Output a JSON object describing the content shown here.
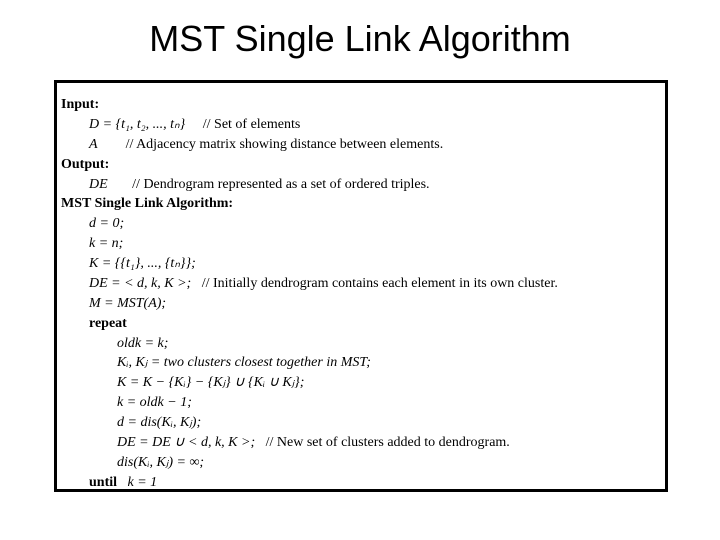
{
  "title": "MST Single Link Algorithm",
  "box": {
    "border_color": "#000000",
    "background": "#ffffff"
  },
  "lines": {
    "l0": "Input:",
    "l1a": "D = {t₁, t₂, ..., tₙ}",
    "l1b": "// Set of elements",
    "l2a": "A",
    "l2b": "// Adjacency matrix showing distance between elements.",
    "l3": "Output:",
    "l4a": "DE",
    "l4b": "// Dendrogram represented as a set of ordered triples.",
    "l5": "MST Single Link Algorithm:",
    "l6": "d = 0;",
    "l7": "k = n;",
    "l8": "K = {{t₁}, ..., {tₙ}};",
    "l9a": "DE = < d, k, K >;",
    "l9b": "// Initially dendrogram contains each element in its own cluster.",
    "l10": "M = MST(A);",
    "l11": "repeat",
    "l12": "oldk = k;",
    "l13": "Kᵢ, Kⱼ = two clusters closest together in MST;",
    "l14": "K = K − {Kᵢ} − {Kⱼ} ∪ {Kᵢ ∪ Kⱼ};",
    "l15": "k = oldk − 1;",
    "l16": "d = dis(Kᵢ, Kⱼ);",
    "l17a": "DE = DE ∪ < d, k, K >;",
    "l17b": "// New set of clusters added to dendrogram.",
    "l18": "dis(Kᵢ, Kⱼ) = ∞;",
    "l19a": "until",
    "l19b": "k = 1"
  }
}
